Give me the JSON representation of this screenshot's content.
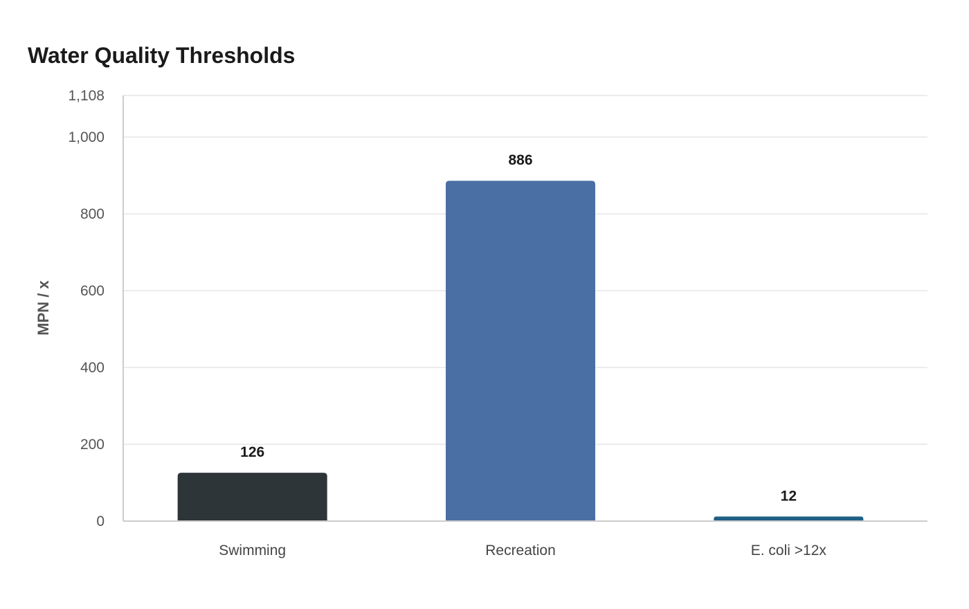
{
  "chart_data": {
    "type": "bar",
    "title": "Water Quality Thresholds",
    "ylabel": "MPN / x",
    "xlabel": "",
    "categories": [
      "Swimming",
      "Recreation",
      "E. coli >12x"
    ],
    "values": [
      126,
      886,
      12
    ],
    "data_labels": [
      "126",
      "886",
      "12"
    ],
    "colors": [
      "#2e3538",
      "#4a6fa5",
      "#1f5f86"
    ],
    "ylim": [
      0,
      1108
    ],
    "yticks": [
      0,
      200,
      400,
      600,
      800,
      1000,
      1108
    ],
    "ytick_labels": [
      "0",
      "200",
      "400",
      "600",
      "800",
      "1,000",
      "1,108"
    ],
    "grid": true,
    "legend": "none"
  }
}
